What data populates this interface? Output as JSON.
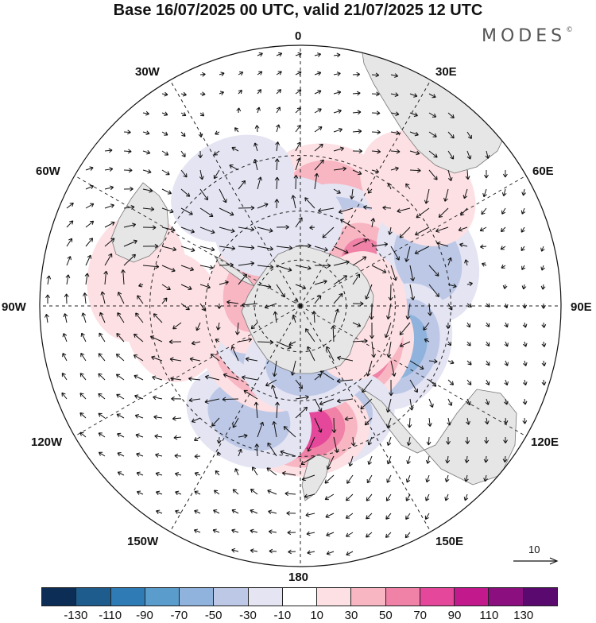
{
  "header": {
    "title": "Base 16/07/2025 00 UTC, valid 21/07/2025 12 UTC",
    "brand": "MODES",
    "brand_mark": "©"
  },
  "meridian_labels": {
    "m0": "0",
    "m30e": "30E",
    "m60e": "60E",
    "m90e": "90E",
    "m120e": "120E",
    "m150e": "150E",
    "m180": "180",
    "m150w": "150W",
    "m120w": "120W",
    "m90w": "90W",
    "m60w": "60W",
    "m30w": "30W"
  },
  "vector_reference": {
    "label": "10",
    "icon": "arrow-right-icon"
  },
  "colorbar": {
    "colors": [
      "#0c2d55",
      "#1e5c8e",
      "#2f7bb5",
      "#5a9ccc",
      "#8fb3dc",
      "#bcc8e6",
      "#e4e4f3",
      "#ffffff",
      "#fde0e4",
      "#f7b6c2",
      "#ef82a6",
      "#e5479a",
      "#c21a8c",
      "#8c0f7f",
      "#5a0a6f"
    ],
    "ticks": [
      "-130",
      "-110",
      "-90",
      "-70",
      "-50",
      "-30",
      "-10",
      "10",
      "30",
      "50",
      "70",
      "90",
      "110",
      "130"
    ]
  },
  "map": {
    "projection": "south-polar-stereographic",
    "land_color": "#e6e6e6",
    "coast_color": "#777777",
    "grid": "dashed",
    "anomaly_centers": [
      {
        "lon": 15,
        "lat": -42,
        "value": 35
      },
      {
        "lon": 35,
        "lat": -55,
        "value": -55
      },
      {
        "lon": 62,
        "lat": -57,
        "value": 60
      },
      {
        "lon": 70,
        "lat": -35,
        "value": -40
      },
      {
        "lon": 112,
        "lat": -45,
        "value": -55
      },
      {
        "lon": 130,
        "lat": -58,
        "value": 75
      },
      {
        "lon": 165,
        "lat": -42,
        "value": -45
      },
      {
        "lon": 178,
        "lat": -40,
        "value": 80
      },
      {
        "lon": -155,
        "lat": -40,
        "value": -45
      },
      {
        "lon": -140,
        "lat": -62,
        "value": 60
      },
      {
        "lon": -115,
        "lat": -70,
        "value": -55
      },
      {
        "lon": -70,
        "lat": -70,
        "value": 45
      },
      {
        "lon": 172,
        "lat": -65,
        "value": -35
      },
      {
        "lon": -95,
        "lat": -38,
        "value": 20
      },
      {
        "lon": -30,
        "lat": -35,
        "value": -30
      },
      {
        "lon": -15,
        "lat": -55,
        "value": -20
      },
      {
        "lon": -80,
        "lat": -25,
        "value": 25
      },
      {
        "lon": 45,
        "lat": -25,
        "value": 25
      },
      {
        "lon": 100,
        "lat": -65,
        "value": 20
      }
    ]
  }
}
